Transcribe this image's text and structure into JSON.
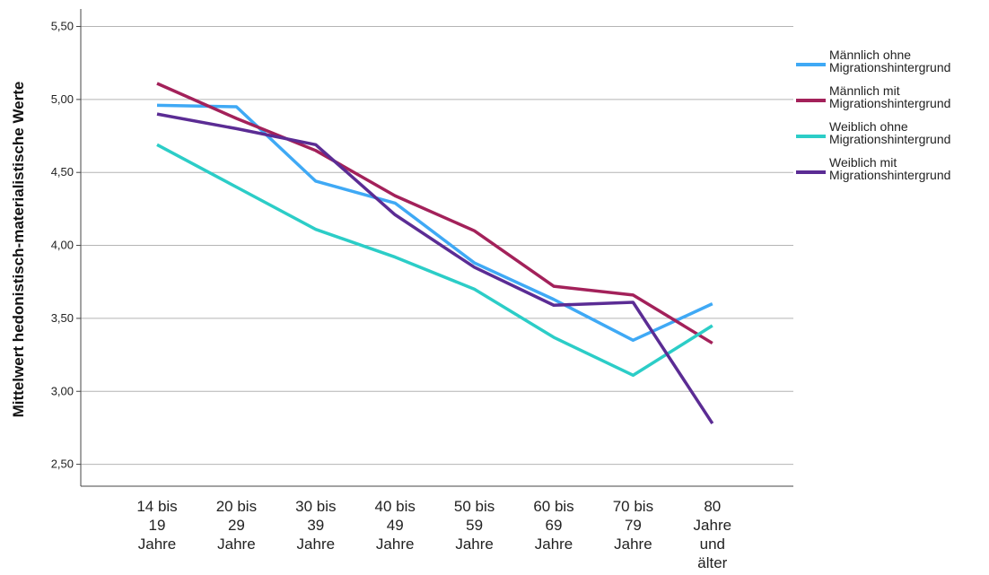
{
  "chart_data": {
    "type": "line",
    "title": "",
    "xlabel": "",
    "ylabel": "Mittelwert hedonistisch-materialistische Werte",
    "ylim": [
      2.35,
      5.62
    ],
    "yticks": [
      {
        "value": 2.5,
        "label": "2,50"
      },
      {
        "value": 3.0,
        "label": "3,00"
      },
      {
        "value": 3.5,
        "label": "3,50"
      },
      {
        "value": 4.0,
        "label": "4,00"
      },
      {
        "value": 4.5,
        "label": "4,50"
      },
      {
        "value": 5.0,
        "label": "5,00"
      },
      {
        "value": 5.5,
        "label": "5,50"
      }
    ],
    "grid": true,
    "legend_position": "right",
    "categories": [
      [
        "14 bis",
        "19",
        "Jahre"
      ],
      [
        "20 bis",
        "29",
        "Jahre"
      ],
      [
        "30 bis",
        "39",
        "Jahre"
      ],
      [
        "40 bis",
        "49",
        "Jahre"
      ],
      [
        "50 bis",
        "59",
        "Jahre"
      ],
      [
        "60 bis",
        "69",
        "Jahre"
      ],
      [
        "70 bis",
        "79",
        "Jahre"
      ],
      [
        "80",
        "Jahre",
        "und",
        "älter"
      ]
    ],
    "series": [
      {
        "name": [
          "Männlich ohne",
          "Migrationshintergrund"
        ],
        "color": "#3FA9F5",
        "values": [
          4.96,
          4.95,
          4.44,
          4.29,
          3.88,
          3.63,
          3.35,
          3.6
        ]
      },
      {
        "name": [
          "Männlich mit",
          "Migrationshintergrund"
        ],
        "color": "#A3215A",
        "values": [
          5.11,
          4.87,
          4.65,
          4.34,
          4.1,
          3.72,
          3.66,
          3.33
        ]
      },
      {
        "name": [
          "Weiblich ohne",
          "Migrationshintergrund"
        ],
        "color": "#2CCDC7",
        "values": [
          4.69,
          4.4,
          4.11,
          3.92,
          3.7,
          3.37,
          3.11,
          3.45
        ]
      },
      {
        "name": [
          "Weiblich mit",
          "Migrationshintergrund"
        ],
        "color": "#5B2C94",
        "values": [
          4.9,
          4.8,
          4.69,
          4.21,
          3.85,
          3.59,
          3.61,
          2.78
        ]
      }
    ]
  }
}
